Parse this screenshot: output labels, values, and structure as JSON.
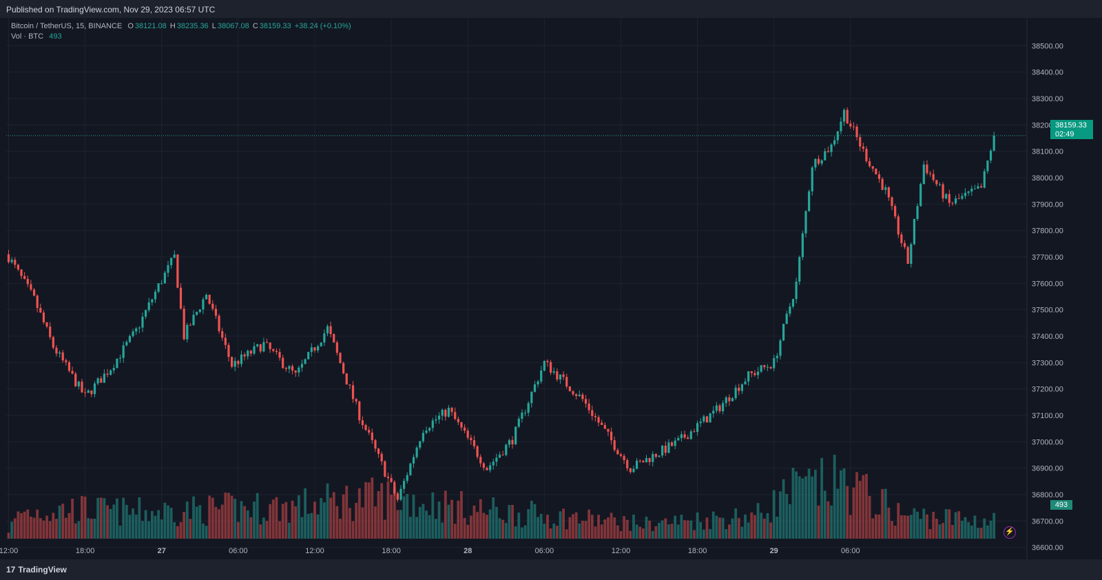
{
  "header": {
    "published": "Published on TradingView.com, Nov 29, 2023 06:57 UTC"
  },
  "legend": {
    "symbol": "Bitcoin / TetherUS, 15, BINANCE",
    "o_label": "O",
    "o_value": "38121.08",
    "h_label": "H",
    "h_value": "38235.36",
    "l_label": "L",
    "l_value": "38067.08",
    "c_label": "C",
    "c_value": "38159.33",
    "change": "+38.24 (+0.10%)",
    "vol_label": "Vol · BTC",
    "vol_value": "493"
  },
  "price_tag": {
    "price": "38159.33",
    "countdown": "02:49"
  },
  "volume_tag": "493",
  "footer": {
    "logo_mark": "17",
    "logo_text": "TradingView"
  },
  "colors": {
    "up": "#26a69a",
    "down": "#ef5350",
    "background": "#131722",
    "grid": "#1f2330"
  },
  "chart_data": {
    "type": "candlestick",
    "symbol": "Bitcoin / TetherUS",
    "interval": "15",
    "exchange": "BINANCE",
    "y_axis_ticks": [
      "38500.00",
      "38400.00",
      "38300.00",
      "38200.00",
      "38100.00",
      "38000.00",
      "37900.00",
      "37800.00",
      "37700.00",
      "37600.00",
      "37500.00",
      "37400.00",
      "37300.00",
      "37200.00",
      "37100.00",
      "37000.00",
      "36900.00",
      "36800.00",
      "36700.00",
      "36600.00"
    ],
    "ylim": [
      36555,
      38605
    ],
    "x_axis_ticks": [
      "12:00",
      "18:00",
      "27",
      "06:00",
      "12:00",
      "18:00",
      "28",
      "06:00",
      "12:00",
      "18:00",
      "29",
      "06:00"
    ],
    "last_price": 38159.33,
    "close_path": [
      {
        "t": 0,
        "c": 37700
      },
      {
        "t": 8,
        "c": 37540
      },
      {
        "t": 14,
        "c": 37360
      },
      {
        "t": 24,
        "c": 37170
      },
      {
        "t": 32,
        "c": 37280
      },
      {
        "t": 40,
        "c": 37420
      },
      {
        "t": 47,
        "c": 37590
      },
      {
        "t": 52,
        "c": 37700
      },
      {
        "t": 55,
        "c": 37400
      },
      {
        "t": 62,
        "c": 37560
      },
      {
        "t": 70,
        "c": 37290
      },
      {
        "t": 80,
        "c": 37370
      },
      {
        "t": 90,
        "c": 37250
      },
      {
        "t": 100,
        "c": 37430
      },
      {
        "t": 110,
        "c": 37100
      },
      {
        "t": 122,
        "c": 36780
      },
      {
        "t": 130,
        "c": 37050
      },
      {
        "t": 138,
        "c": 37120
      },
      {
        "t": 150,
        "c": 36900
      },
      {
        "t": 158,
        "c": 37010
      },
      {
        "t": 168,
        "c": 37300
      },
      {
        "t": 180,
        "c": 37160
      },
      {
        "t": 195,
        "c": 36900
      },
      {
        "t": 210,
        "c": 37000
      },
      {
        "t": 222,
        "c": 37120
      },
      {
        "t": 232,
        "c": 37250
      },
      {
        "t": 240,
        "c": 37300
      },
      {
        "t": 247,
        "c": 37600
      },
      {
        "t": 252,
        "c": 38050
      },
      {
        "t": 258,
        "c": 38120
      },
      {
        "t": 262,
        "c": 38250
      },
      {
        "t": 268,
        "c": 38100
      },
      {
        "t": 275,
        "c": 37950
      },
      {
        "t": 282,
        "c": 37680
      },
      {
        "t": 287,
        "c": 38050
      },
      {
        "t": 295,
        "c": 37900
      },
      {
        "t": 305,
        "c": 37960
      },
      {
        "t": 309,
        "c": 38159.33
      }
    ],
    "volume_profile": [
      {
        "t": 0,
        "v": 0.3
      },
      {
        "t": 4,
        "v": 0.9
      },
      {
        "t": 20,
        "v": 1.0
      },
      {
        "t": 40,
        "v": 0.9
      },
      {
        "t": 90,
        "v": 1.1
      },
      {
        "t": 105,
        "v": 1.3
      },
      {
        "t": 120,
        "v": 1.4
      },
      {
        "t": 145,
        "v": 1.0
      },
      {
        "t": 200,
        "v": 0.5
      },
      {
        "t": 235,
        "v": 0.8
      },
      {
        "t": 245,
        "v": 1.6
      },
      {
        "t": 262,
        "v": 1.9
      },
      {
        "t": 280,
        "v": 0.8
      },
      {
        "t": 309,
        "v": 0.6
      }
    ],
    "volume_last": 493,
    "grid": true
  }
}
